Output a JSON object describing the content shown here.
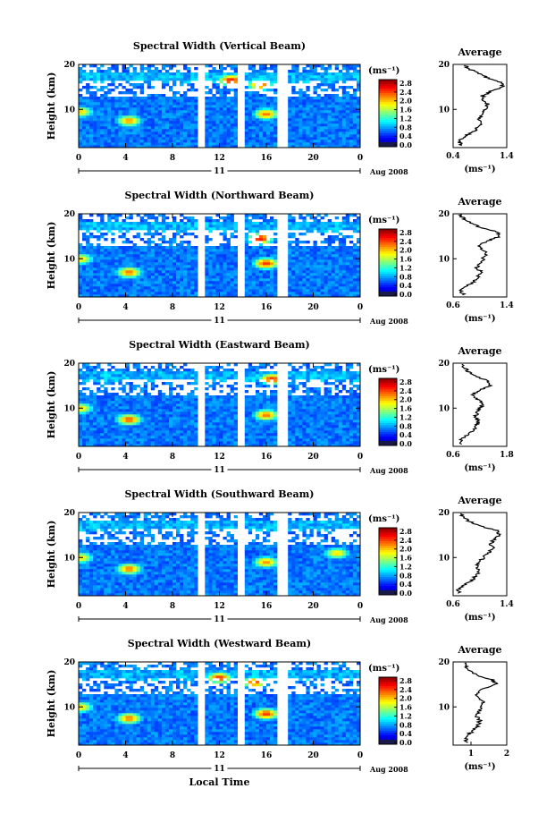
{
  "figure": {
    "xlabel": "Local Time",
    "date_label": "Aug 2008",
    "day_label": "11",
    "colorbar_unit": "(ms⁻¹)",
    "colorbar_ticks": [
      "2.8",
      "2.4",
      "2.0",
      "1.6",
      "1.2",
      "0.8",
      "0.4",
      "0.0"
    ],
    "average_title": "Average",
    "average_unit": "(ms⁻¹)"
  },
  "chart_data": [
    {
      "type": "heatmap",
      "title": "Spectral Width (Vertical Beam)",
      "ylabel": "Height (km)",
      "x_ticks": [
        "0",
        "4",
        "8",
        "12",
        "16",
        "20",
        "0"
      ],
      "y_ticks": [
        "20",
        "10"
      ],
      "xlim": [
        0,
        24
      ],
      "ylim": [
        1.5,
        20
      ],
      "data_gaps_hours": [
        [
          10.2,
          10.6
        ],
        [
          13.8,
          14.1
        ],
        [
          17.2,
          17.7
        ]
      ],
      "color_range": [
        0.0,
        3.0
      ],
      "hotspots": [
        {
          "t": 4.3,
          "h": 7.5,
          "v": 2.2
        },
        {
          "t": 16.0,
          "h": 9.0,
          "v": 2.3
        },
        {
          "t": 0.2,
          "h": 9.5,
          "v": 2.0
        },
        {
          "t": 13.0,
          "h": 16.5,
          "v": 2.6
        },
        {
          "t": 15.5,
          "h": 15.5,
          "v": 2.4
        }
      ],
      "average_profile": {
        "xlim": [
          0.4,
          1.4
        ],
        "x_ticks": [
          "0.4",
          "1.4"
        ],
        "y_ticks": [
          "20",
          "10"
        ],
        "height_km": [
          2,
          3,
          4,
          5,
          6,
          7,
          8,
          9,
          10,
          11,
          12,
          13,
          14,
          15,
          16,
          17,
          18,
          19,
          20
        ],
        "width_ms": [
          0.55,
          0.5,
          0.62,
          0.78,
          0.85,
          0.92,
          0.88,
          0.95,
          1.0,
          1.05,
          0.98,
          0.95,
          1.1,
          1.35,
          1.3,
          1.05,
          0.9,
          0.7,
          0.6
        ]
      }
    },
    {
      "type": "heatmap",
      "title": "Spectral Width (Northward Beam)",
      "ylabel": "Height (km)",
      "x_ticks": [
        "0",
        "4",
        "8",
        "12",
        "16",
        "20",
        "0"
      ],
      "y_ticks": [
        "20",
        "10"
      ],
      "xlim": [
        0,
        24
      ],
      "ylim": [
        1.5,
        20
      ],
      "data_gaps_hours": [
        [
          10.2,
          10.6
        ],
        [
          13.8,
          14.1
        ],
        [
          17.2,
          17.7
        ]
      ],
      "color_range": [
        0.0,
        3.0
      ],
      "hotspots": [
        {
          "t": 4.3,
          "h": 7.0,
          "v": 2.3
        },
        {
          "t": 16.0,
          "h": 9.0,
          "v": 2.5
        },
        {
          "t": 0.2,
          "h": 10.0,
          "v": 2.0
        },
        {
          "t": 15.5,
          "h": 14.5,
          "v": 2.6
        }
      ],
      "average_profile": {
        "xlim": [
          0.6,
          1.4
        ],
        "x_ticks": [
          "0.6",
          "1.4"
        ],
        "y_ticks": [
          "20",
          "10"
        ],
        "height_km": [
          2,
          3,
          4,
          5,
          6,
          7,
          8,
          9,
          10,
          11,
          12,
          13,
          14,
          15,
          16,
          17,
          18,
          19,
          20
        ],
        "width_ms": [
          0.75,
          0.7,
          0.8,
          0.92,
          0.98,
          1.02,
          0.95,
          1.0,
          1.05,
          1.1,
          1.05,
          1.0,
          1.12,
          1.3,
          1.25,
          1.0,
          0.85,
          0.75,
          0.7
        ]
      }
    },
    {
      "type": "heatmap",
      "title": "Spectral Width (Eastward Beam)",
      "ylabel": "Height (km)",
      "x_ticks": [
        "0",
        "4",
        "8",
        "12",
        "16",
        "20",
        "0"
      ],
      "y_ticks": [
        "20",
        "10"
      ],
      "xlim": [
        0,
        24
      ],
      "ylim": [
        1.5,
        20
      ],
      "data_gaps_hours": [
        [
          10.2,
          10.6
        ],
        [
          13.8,
          14.1
        ],
        [
          17.2,
          17.7
        ]
      ],
      "color_range": [
        0.0,
        3.0
      ],
      "hotspots": [
        {
          "t": 4.3,
          "h": 7.5,
          "v": 2.4
        },
        {
          "t": 16.0,
          "h": 8.5,
          "v": 2.3
        },
        {
          "t": 0.2,
          "h": 10.0,
          "v": 2.0
        },
        {
          "t": 16.5,
          "h": 16.5,
          "v": 2.5
        }
      ],
      "average_profile": {
        "xlim": [
          0.6,
          1.8
        ],
        "x_ticks": [
          "0.6",
          "1.8"
        ],
        "y_ticks": [
          "20",
          "10"
        ],
        "height_km": [
          2,
          3,
          4,
          5,
          6,
          7,
          8,
          9,
          10,
          11,
          12,
          13,
          14,
          15,
          16,
          17,
          18,
          19,
          20
        ],
        "width_ms": [
          0.8,
          0.78,
          0.9,
          1.05,
          1.12,
          1.18,
          1.1,
          1.15,
          1.2,
          1.25,
          1.15,
          1.05,
          1.2,
          1.45,
          1.4,
          1.1,
          0.95,
          0.85,
          0.8
        ]
      }
    },
    {
      "type": "heatmap",
      "title": "Spectral Width (Southward Beam)",
      "ylabel": "Height (km)",
      "x_ticks": [
        "0",
        "4",
        "8",
        "12",
        "16",
        "20",
        "0"
      ],
      "y_ticks": [
        "20",
        "10"
      ],
      "xlim": [
        0,
        24
      ],
      "ylim": [
        1.5,
        20
      ],
      "data_gaps_hours": [
        [
          10.2,
          10.6
        ],
        [
          13.8,
          14.1
        ],
        [
          17.2,
          17.7
        ]
      ],
      "color_range": [
        0.0,
        3.0
      ],
      "hotspots": [
        {
          "t": 4.3,
          "h": 7.5,
          "v": 2.3
        },
        {
          "t": 16.0,
          "h": 9.0,
          "v": 2.2
        },
        {
          "t": 0.2,
          "h": 10.0,
          "v": 2.0
        },
        {
          "t": 22.0,
          "h": 11.0,
          "v": 2.0
        }
      ],
      "average_profile": {
        "xlim": [
          0.6,
          1.4
        ],
        "x_ticks": [
          "0.6",
          "1.4"
        ],
        "y_ticks": [
          "20",
          "10"
        ],
        "height_km": [
          2,
          3,
          4,
          5,
          6,
          7,
          8,
          9,
          10,
          11,
          12,
          13,
          14,
          15,
          16,
          17,
          18,
          19,
          20
        ],
        "width_ms": [
          0.7,
          0.68,
          0.78,
          0.88,
          0.95,
          1.0,
          0.95,
          1.0,
          1.05,
          1.12,
          1.2,
          1.15,
          1.22,
          1.3,
          1.25,
          1.0,
          0.85,
          0.75,
          0.7
        ]
      }
    },
    {
      "type": "heatmap",
      "title": "Spectral Width (Westward Beam)",
      "ylabel": "Height (km)",
      "x_ticks": [
        "0",
        "4",
        "8",
        "12",
        "16",
        "20",
        "0"
      ],
      "y_ticks": [
        "20",
        "10"
      ],
      "xlim": [
        0,
        24
      ],
      "ylim": [
        1.5,
        20
      ],
      "data_gaps_hours": [
        [
          10.2,
          10.6
        ],
        [
          13.8,
          14.1
        ],
        [
          17.2,
          17.7
        ]
      ],
      "color_range": [
        0.0,
        3.0
      ],
      "hotspots": [
        {
          "t": 4.3,
          "h": 7.5,
          "v": 2.3
        },
        {
          "t": 16.0,
          "h": 8.5,
          "v": 2.5
        },
        {
          "t": 0.2,
          "h": 10.0,
          "v": 2.0
        },
        {
          "t": 12.0,
          "h": 16.5,
          "v": 2.5
        },
        {
          "t": 15.0,
          "h": 15.5,
          "v": 2.4
        }
      ],
      "average_profile": {
        "xlim": [
          0.5,
          2.0
        ],
        "x_ticks": [
          "1",
          "2"
        ],
        "y_ticks": [
          "20",
          "10"
        ],
        "height_km": [
          2,
          3,
          4,
          5,
          6,
          7,
          8,
          9,
          10,
          11,
          12,
          13,
          14,
          15,
          16,
          17,
          18,
          19,
          20
        ],
        "width_ms": [
          0.9,
          0.85,
          0.95,
          1.1,
          1.2,
          1.25,
          1.15,
          1.2,
          1.3,
          1.35,
          1.25,
          1.15,
          1.3,
          1.7,
          1.6,
          1.2,
          1.0,
          0.85,
          0.8
        ]
      }
    }
  ]
}
